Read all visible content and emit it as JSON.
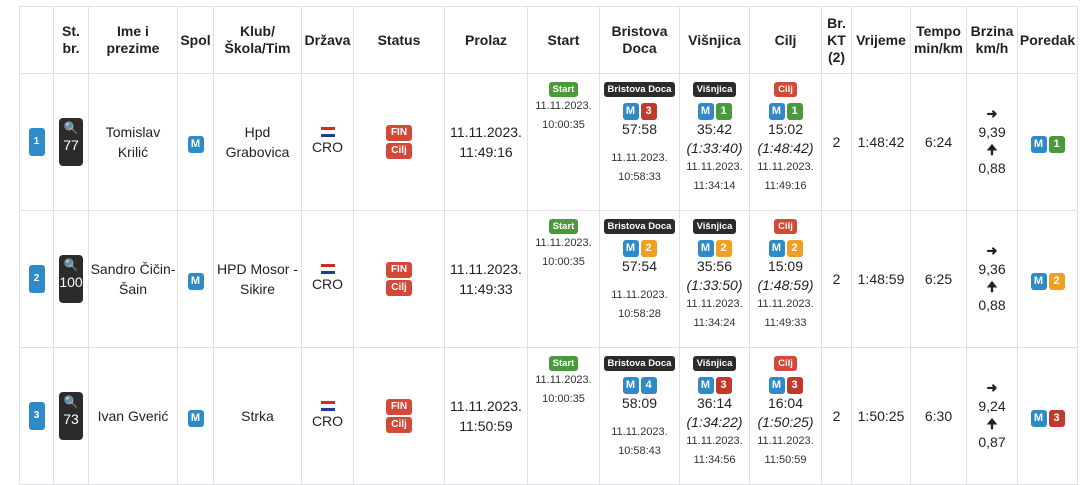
{
  "headers": [
    "",
    "St. br.",
    "Ime i prezime",
    "Spol",
    "Klub/ Škola/Tim",
    "Država",
    "Status",
    "Prolaz",
    "Start",
    "Bristova Doca",
    "Višnjica",
    "Cilj",
    "Br. KT (2)",
    "Vrijeme",
    "Tempo min/km",
    "Brzina km/h",
    "Poredak"
  ],
  "labels": {
    "start": "Start",
    "bristova": "Bristova Doca",
    "visnjica": "Višnjica",
    "cilj": "Cilj",
    "fin": "FIN",
    "cilj_status": "Cilj",
    "gender": "M",
    "arrow_right": "➜",
    "arrow_up": "🠉",
    "search_icon": "🔍"
  },
  "rows": [
    {
      "rank": "1",
      "bib": "77",
      "name": "Tomislav Krilić",
      "gender": "M",
      "club": "Hpd Grabovica",
      "country": "CRO",
      "prolaz_date": "11.11.2023.",
      "prolaz_time": "11:49:16",
      "start_date": "11.11.2023.",
      "start_time": "10:00:35",
      "b_gender": "M",
      "b_pos": "3",
      "b_split": "57:58",
      "b_date": "11.11.2023.",
      "b_time": "10:58:33",
      "v_gender": "M",
      "v_pos": "1",
      "v_split": "35:42",
      "v_cum": "(1:33:40)",
      "v_date": "11.11.2023.",
      "v_time": "11:34:14",
      "c_gender": "M",
      "c_pos": "1",
      "c_split": "15:02",
      "c_cum": "(1:48:42)",
      "c_date": "11.11.2023.",
      "c_time": "11:49:16",
      "kt": "2",
      "vrijeme": "1:48:42",
      "tempo": "6:24",
      "brzina1": "9,39",
      "brzina2": "0,88",
      "poredak_gender": "M",
      "poredak_pos": "1"
    },
    {
      "rank": "2",
      "bib": "100",
      "name": "Sandro Čičin-Šain",
      "gender": "M",
      "club": "HPD Mosor - Sikire",
      "country": "CRO",
      "prolaz_date": "11.11.2023.",
      "prolaz_time": "11:49:33",
      "start_date": "11.11.2023.",
      "start_time": "10:00:35",
      "b_gender": "M",
      "b_pos": "2",
      "b_split": "57:54",
      "b_date": "11.11.2023.",
      "b_time": "10:58:28",
      "v_gender": "M",
      "v_pos": "2",
      "v_split": "35:56",
      "v_cum": "(1:33:50)",
      "v_date": "11.11.2023.",
      "v_time": "11:34:24",
      "c_gender": "M",
      "c_pos": "2",
      "c_split": "15:09",
      "c_cum": "(1:48:59)",
      "c_date": "11.11.2023.",
      "c_time": "11:49:33",
      "kt": "2",
      "vrijeme": "1:48:59",
      "tempo": "6:25",
      "brzina1": "9,36",
      "brzina2": "0,88",
      "poredak_gender": "M",
      "poredak_pos": "2"
    },
    {
      "rank": "3",
      "bib": "73",
      "name": "Ivan Gverić",
      "gender": "M",
      "club": "Strka",
      "country": "CRO",
      "prolaz_date": "11.11.2023.",
      "prolaz_time": "11:50:59",
      "start_date": "11.11.2023.",
      "start_time": "10:00:35",
      "b_gender": "M",
      "b_pos": "4",
      "b_split": "58:09",
      "b_date": "11.11.2023.",
      "b_time": "10:58:43",
      "v_gender": "M",
      "v_pos": "3",
      "v_split": "36:14",
      "v_cum": "(1:34:22)",
      "v_date": "11.11.2023.",
      "v_time": "11:34:56",
      "c_gender": "M",
      "c_pos": "3",
      "c_split": "16:04",
      "c_cum": "(1:50:25)",
      "c_date": "11.11.2023.",
      "c_time": "11:50:59",
      "kt": "2",
      "vrijeme": "1:50:25",
      "tempo": "6:30",
      "brzina1": "9,24",
      "brzina2": "0,87",
      "poredak_gender": "M",
      "poredak_pos": "3"
    }
  ],
  "colors": {
    "blue": "#2e8bc7",
    "green": "#4a9a3c",
    "orange": "#f0a020",
    "red": "#c0392b",
    "dark": "#2b2b2b",
    "fin_red": "#d34836"
  },
  "icons": {
    "search": "search-icon",
    "flag": "croatia-flag-icon",
    "arrow_right": "arrow-right-icon",
    "arrow_up": "arrow-up-icon"
  }
}
